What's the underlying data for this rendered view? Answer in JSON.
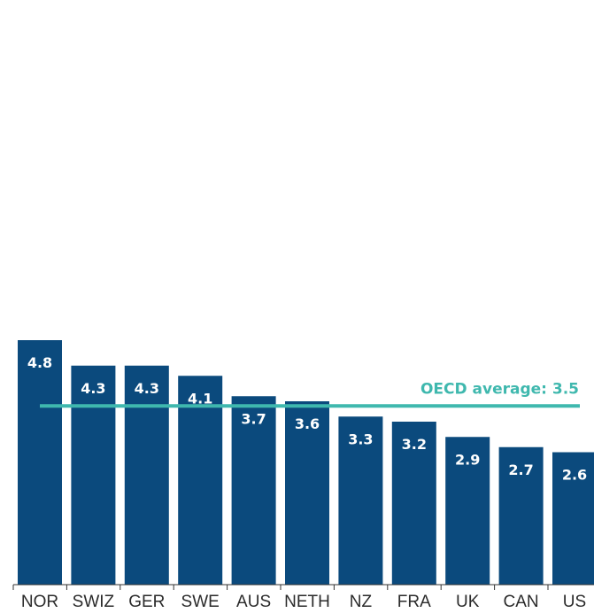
{
  "chart_data": {
    "type": "bar",
    "categories": [
      "NOR",
      "SWIZ",
      "GER",
      "SWE",
      "AUS",
      "NETH",
      "NZ",
      "FRA",
      "UK",
      "CAN",
      "US"
    ],
    "values": [
      4.8,
      4.3,
      4.3,
      4.1,
      3.7,
      3.6,
      3.3,
      3.2,
      2.9,
      2.7,
      2.6
    ],
    "data_labels": [
      "4.8",
      "4.3",
      "4.3",
      "4.1",
      "3.7",
      "3.6",
      "3.3",
      "3.2",
      "2.9",
      "2.7",
      "2.6"
    ],
    "title": "",
    "xlabel": "",
    "ylabel": "",
    "ylim": [
      0,
      4.8
    ],
    "grid": false,
    "reference_line": {
      "label": "OECD average: 3.5",
      "value": 3.5
    },
    "colors": {
      "bar": "#0b4a7d",
      "reference_line": "#3fb8ae",
      "data_label": "#ffffff"
    }
  }
}
